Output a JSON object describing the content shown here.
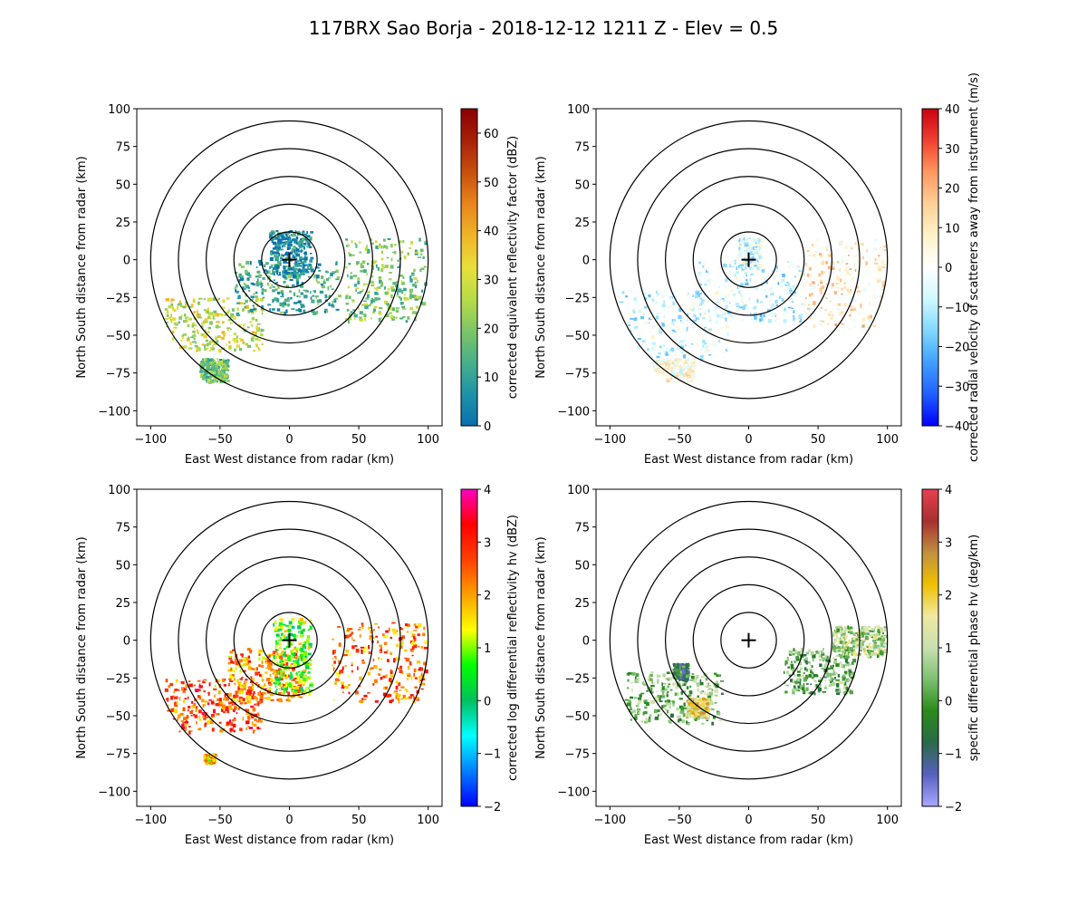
{
  "figure": {
    "title": "117BRX Sao Borja - 2018-12-12 1211 Z -  Elev = 0.5"
  },
  "chart_data": [
    {
      "type": "ppi",
      "field": "reflectivity",
      "xlabel": "East West distance from radar (km)",
      "ylabel": "North South distance from radar (km)",
      "xlim": [
        -110,
        110
      ],
      "ylim": [
        -110,
        100
      ],
      "xticks": [
        -100,
        -50,
        0,
        50,
        100
      ],
      "yticks": [
        -100,
        -75,
        -50,
        -25,
        0,
        25,
        50,
        75,
        100
      ],
      "range_rings_km": [
        20,
        40,
        60,
        80,
        100
      ],
      "colorbar": {
        "label": "corrected equivalent reflectivity factor (dBZ)",
        "range": [
          0,
          65
        ],
        "ticks": [
          0,
          10,
          20,
          30,
          40,
          50,
          60
        ],
        "colors": [
          "#0a6fae",
          "#1e93a8",
          "#47b08b",
          "#7dc566",
          "#b8dc48",
          "#e8df3a",
          "#f0b428",
          "#e8841c",
          "#c8500e",
          "#a82008",
          "#8c0000"
        ]
      },
      "echo_regions": [
        {
          "name": "southwest band",
          "x_km": [
            -90,
            -20
          ],
          "y_km": [
            -60,
            -25
          ],
          "level": 28
        },
        {
          "name": "central line",
          "x_km": [
            -40,
            35
          ],
          "y_km": [
            -35,
            0
          ],
          "level": 12
        },
        {
          "name": "near radar",
          "x_km": [
            -15,
            15
          ],
          "y_km": [
            -10,
            20
          ],
          "level": 5
        },
        {
          "name": "east band",
          "x_km": [
            40,
            98
          ],
          "y_km": [
            -40,
            15
          ],
          "level": 20
        },
        {
          "name": "south isolated",
          "x_km": [
            -65,
            -45
          ],
          "y_km": [
            -80,
            -65
          ],
          "level": 18
        }
      ]
    },
    {
      "type": "ppi",
      "field": "velocity",
      "xlabel": "East West distance from radar (km)",
      "ylabel": "North South distance from radar (km)",
      "xlim": [
        -110,
        110
      ],
      "ylim": [
        -110,
        100
      ],
      "xticks": [
        -100,
        -50,
        0,
        50,
        100
      ],
      "yticks": [
        -100,
        -75,
        -50,
        -25,
        0,
        25,
        50,
        75,
        100
      ],
      "range_rings_km": [
        20,
        40,
        60,
        80,
        100
      ],
      "colorbar": {
        "label": "corrected radial velocity of scatterers away from instrument (m/s)",
        "range": [
          -40,
          40
        ],
        "ticks": [
          -40,
          -30,
          -20,
          -10,
          0,
          10,
          20,
          30,
          40
        ],
        "colors": [
          "#0000ff",
          "#2060ff",
          "#40a0ff",
          "#80d8ff",
          "#d0f8ff",
          "#ffffff",
          "#fff2c8",
          "#ffd098",
          "#ff9860",
          "#f04030",
          "#c80010"
        ]
      },
      "echo_regions": [
        {
          "name": "southwest band",
          "x_km": [
            -95,
            -15
          ],
          "y_km": [
            -65,
            -20
          ],
          "level": -6
        },
        {
          "name": "central line",
          "x_km": [
            -40,
            40
          ],
          "y_km": [
            -40,
            0
          ],
          "level": -8
        },
        {
          "name": "east band",
          "x_km": [
            40,
            98
          ],
          "y_km": [
            -45,
            15
          ],
          "level": 8
        },
        {
          "name": "near radar",
          "x_km": [
            -8,
            8
          ],
          "y_km": [
            -5,
            15
          ],
          "level": -5
        },
        {
          "name": "south isolated",
          "x_km": [
            -70,
            -40
          ],
          "y_km": [
            -80,
            -65
          ],
          "level": 4
        }
      ]
    },
    {
      "type": "ppi",
      "field": "differential_reflectivity",
      "xlabel": "East West distance from radar (km)",
      "ylabel": "North South distance from radar (km)",
      "xlim": [
        -110,
        110
      ],
      "ylim": [
        -110,
        100
      ],
      "xticks": [
        -100,
        -50,
        0,
        50,
        100
      ],
      "yticks": [
        -100,
        -75,
        -50,
        -25,
        0,
        25,
        50,
        75,
        100
      ],
      "range_rings_km": [
        20,
        40,
        60,
        80,
        100
      ],
      "colorbar": {
        "label": "corrected log differential reflectivity hv (dBZ)",
        "range": [
          -2,
          4
        ],
        "ticks": [
          -2,
          -1,
          0,
          1,
          2,
          3,
          4
        ],
        "colors": [
          "#0000ff",
          "#0080ff",
          "#00ffff",
          "#00c060",
          "#00ff00",
          "#ffff00",
          "#ffa000",
          "#ff4000",
          "#ff0000",
          "#ff00c0"
        ]
      },
      "echo_regions": [
        {
          "name": "southwest band",
          "x_km": [
            -90,
            -20
          ],
          "y_km": [
            -60,
            -25
          ],
          "level": 2.6
        },
        {
          "name": "central line",
          "x_km": [
            -45,
            10
          ],
          "y_km": [
            -40,
            -5
          ],
          "level": 2.2
        },
        {
          "name": "east band",
          "x_km": [
            30,
            98
          ],
          "y_km": [
            -40,
            12
          ],
          "level": 2.4
        },
        {
          "name": "near radar",
          "x_km": [
            -12,
            15
          ],
          "y_km": [
            -35,
            15
          ],
          "level": 0.8
        },
        {
          "name": "south isolated",
          "x_km": [
            -62,
            -55
          ],
          "y_km": [
            -80,
            -75
          ],
          "level": 1.8
        }
      ]
    },
    {
      "type": "ppi",
      "field": "specific_differential_phase",
      "xlabel": "East West distance from radar (km)",
      "ylabel": "North South distance from radar (km)",
      "xlim": [
        -110,
        110
      ],
      "ylim": [
        -110,
        100
      ],
      "xticks": [
        -100,
        -50,
        0,
        50,
        100
      ],
      "yticks": [
        -100,
        -75,
        -50,
        -25,
        0,
        25,
        50,
        75,
        100
      ],
      "range_rings_km": [
        20,
        40,
        60,
        80,
        100
      ],
      "colorbar": {
        "label": "specific differential phase hv (deg/km)",
        "range": [
          -2,
          4
        ],
        "ticks": [
          -2,
          -1,
          0,
          1,
          2,
          3,
          4
        ],
        "colors": [
          "#a8a8ff",
          "#5860c0",
          "#2a6a4a",
          "#2a8a1a",
          "#7cc070",
          "#c8e0b0",
          "#f0e8a0",
          "#f0c000",
          "#c09040",
          "#a83030",
          "#e84050"
        ]
      },
      "echo_regions": [
        {
          "name": "southwest cells",
          "x_km": [
            -90,
            -20
          ],
          "y_km": [
            -55,
            -20
          ],
          "level": 0.3
        },
        {
          "name": "central cell",
          "x_km": [
            -45,
            -30
          ],
          "y_km": [
            -50,
            -38
          ],
          "level": 1.8
        },
        {
          "name": "east band",
          "x_km": [
            25,
            75
          ],
          "y_km": [
            -35,
            -5
          ],
          "level": 0.2
        },
        {
          "name": "far east",
          "x_km": [
            60,
            98
          ],
          "y_km": [
            -10,
            10
          ],
          "level": 0.8
        },
        {
          "name": "isolated",
          "x_km": [
            -55,
            -45
          ],
          "y_km": [
            -25,
            -15
          ],
          "level": -0.5
        }
      ]
    }
  ]
}
